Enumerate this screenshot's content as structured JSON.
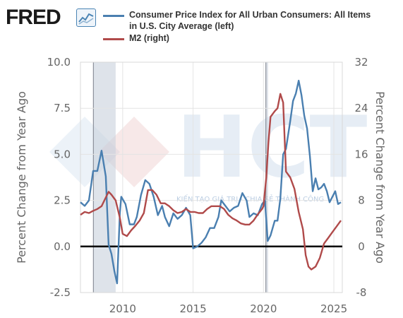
{
  "brand": {
    "logo_text": "FRED",
    "logo_icon": "chart-line-icon"
  },
  "legend": {
    "items": [
      {
        "label_line1": "Consumer Price Index for All Urban Consumers: All Items",
        "label_line2": "in U.S. City Average (left)",
        "color": "#4a7fb0"
      },
      {
        "label_line1": "M2 (right)",
        "label_line2": "",
        "color": "#b04a4a"
      }
    ]
  },
  "watermark": {
    "text": "HCT",
    "tagline": "KIẾN TẠO GIÁ TRỊ - CHIA SẺ THÀNH CÔNG"
  },
  "chart_data": {
    "type": "line",
    "title": "",
    "ylabel_left": "Percent Change from Year Ago",
    "ylabel_right": "Percent Change from Year Ago",
    "y_left_range": [
      -2.5,
      10.0
    ],
    "y_right_range": [
      -8,
      32
    ],
    "y_left_ticks": [
      "10.0",
      "7.5",
      "5.0",
      "2.5",
      "0.0",
      "-2.5"
    ],
    "y_right_ticks": [
      "32",
      "24",
      "16",
      "8",
      "0",
      "-8"
    ],
    "x_range": [
      2007.0,
      2025.6
    ],
    "x_ticks": [
      "2010",
      "2015",
      "2020",
      "2025"
    ],
    "grid": true,
    "recessions": [
      [
        2007.92,
        2009.5
      ],
      [
        2020.17,
        2020.33
      ]
    ],
    "series": [
      {
        "name": "Consumer Price Index for All Urban Consumers: All Items in U.S. City Average (left)",
        "axis": "left",
        "color": "#4a7fb0",
        "x": [
          2007.0,
          2007.3,
          2007.6,
          2007.9,
          2008.2,
          2008.5,
          2008.8,
          2009.0,
          2009.2,
          2009.4,
          2009.6,
          2009.8,
          2009.9,
          2010.2,
          2010.5,
          2010.8,
          2011.0,
          2011.3,
          2011.6,
          2011.9,
          2012.2,
          2012.5,
          2012.8,
          2013.0,
          2013.3,
          2013.6,
          2013.9,
          2014.2,
          2014.5,
          2014.8,
          2015.0,
          2015.3,
          2015.6,
          2015.9,
          2016.2,
          2016.5,
          2016.8,
          2017.0,
          2017.3,
          2017.6,
          2017.9,
          2018.2,
          2018.5,
          2018.8,
          2019.0,
          2019.3,
          2019.6,
          2019.9,
          2020.1,
          2020.3,
          2020.5,
          2020.8,
          2021.0,
          2021.2,
          2021.4,
          2021.6,
          2021.9,
          2022.1,
          2022.3,
          2022.5,
          2022.7,
          2022.9,
          2023.1,
          2023.3,
          2023.5,
          2023.7,
          2023.9,
          2024.1,
          2024.3,
          2024.5,
          2024.7,
          2024.9,
          2025.1,
          2025.3,
          2025.5
        ],
        "y": [
          2.4,
          2.2,
          2.5,
          4.1,
          4.1,
          5.2,
          3.8,
          0.1,
          -0.4,
          -1.3,
          -2.0,
          1.8,
          2.7,
          2.3,
          1.2,
          1.2,
          1.6,
          2.8,
          3.6,
          3.4,
          2.7,
          1.7,
          2.2,
          1.6,
          1.1,
          1.8,
          1.5,
          1.7,
          2.1,
          1.7,
          -0.1,
          0.0,
          0.2,
          0.5,
          1.0,
          1.0,
          1.6,
          2.5,
          2.2,
          1.9,
          2.1,
          2.2,
          2.9,
          2.5,
          1.6,
          1.8,
          1.7,
          2.3,
          2.5,
          0.3,
          0.6,
          1.4,
          1.4,
          2.6,
          5.0,
          5.3,
          6.8,
          7.9,
          8.3,
          9.0,
          8.2,
          7.1,
          6.4,
          4.9,
          3.0,
          3.7,
          3.1,
          3.2,
          3.4,
          3.0,
          2.4,
          2.7,
          3.0,
          2.3,
          2.4
        ]
      },
      {
        "name": "M2 (right)",
        "axis": "right",
        "color": "#b04a4a",
        "x": [
          2007.0,
          2007.3,
          2007.6,
          2007.9,
          2008.2,
          2008.5,
          2008.8,
          2009.0,
          2009.2,
          2009.5,
          2009.8,
          2010.0,
          2010.3,
          2010.6,
          2010.9,
          2011.2,
          2011.5,
          2011.8,
          2012.1,
          2012.4,
          2012.7,
          2013.0,
          2013.3,
          2013.6,
          2013.9,
          2014.2,
          2014.5,
          2014.8,
          2015.1,
          2015.4,
          2015.7,
          2016.0,
          2016.3,
          2016.6,
          2016.9,
          2017.2,
          2017.5,
          2017.8,
          2018.1,
          2018.4,
          2018.7,
          2019.0,
          2019.3,
          2019.6,
          2019.9,
          2020.0,
          2020.2,
          2020.35,
          2020.5,
          2020.8,
          2021.0,
          2021.2,
          2021.4,
          2021.6,
          2021.9,
          2022.2,
          2022.5,
          2022.8,
          2023.0,
          2023.2,
          2023.4,
          2023.7,
          2024.0,
          2024.3,
          2024.6,
          2024.9,
          2025.2,
          2025.5
        ],
        "y": [
          5.5,
          6.0,
          5.8,
          6.2,
          6.5,
          7.0,
          8.5,
          9.5,
          9.0,
          8.0,
          5.0,
          2.2,
          1.8,
          2.8,
          3.6,
          4.5,
          5.8,
          9.8,
          9.8,
          9.0,
          7.5,
          7.5,
          7.0,
          6.3,
          5.8,
          6.0,
          6.5,
          6.0,
          6.0,
          5.8,
          5.8,
          6.5,
          7.0,
          7.0,
          7.0,
          6.5,
          5.5,
          4.9,
          4.5,
          4.0,
          3.8,
          3.8,
          4.5,
          5.6,
          6.5,
          7.0,
          12.0,
          18.0,
          22.5,
          23.5,
          24.0,
          26.5,
          25.0,
          13.0,
          12.0,
          10.0,
          6.0,
          3.0,
          -1.5,
          -3.5,
          -4.0,
          -3.5,
          -2.0,
          0.5,
          1.5,
          2.5,
          3.5,
          4.5
        ]
      }
    ],
    "zero_line": true
  }
}
